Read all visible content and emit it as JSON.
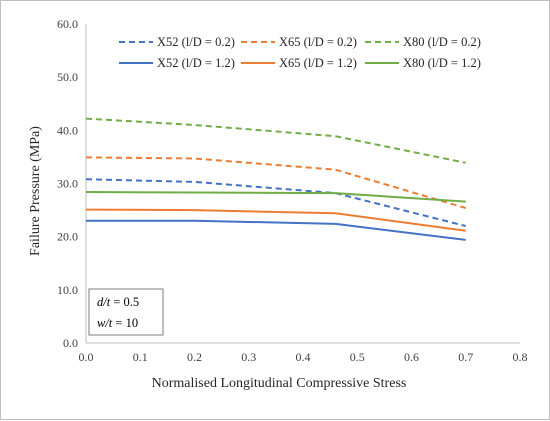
{
  "chart_data": {
    "type": "line",
    "xlabel": "Normalised Longitudinal Compressive Stress",
    "ylabel": "Failure Pressure (MPa)",
    "xlim": [
      0.0,
      0.8
    ],
    "ylim": [
      0.0,
      60.0
    ],
    "x_ticks": [
      "0.0",
      "0.1",
      "0.2",
      "0.3",
      "0.4",
      "0.5",
      "0.6",
      "0.7",
      "0.8"
    ],
    "y_ticks": [
      "0.0",
      "10.0",
      "20.0",
      "30.0",
      "40.0",
      "50.0",
      "60.0"
    ],
    "grid": false,
    "legend_position": "top-right",
    "series": [
      {
        "name": "X52 (l/D = 0.2)",
        "color": "#4472c4",
        "dash": "dashed",
        "x": [
          0.0,
          0.2,
          0.46,
          0.7
        ],
        "y": [
          30.8,
          30.3,
          28.2,
          22.0
        ]
      },
      {
        "name": "X65 (l/D = 0.2)",
        "color": "#ed7d31",
        "dash": "dashed",
        "x": [
          0.0,
          0.2,
          0.46,
          0.7
        ],
        "y": [
          34.9,
          34.7,
          32.6,
          25.4
        ]
      },
      {
        "name": "X80 (l/D = 0.2)",
        "color": "#70ad47",
        "dash": "dashed",
        "x": [
          0.0,
          0.2,
          0.46,
          0.7
        ],
        "y": [
          42.2,
          41.0,
          38.9,
          33.9
        ]
      },
      {
        "name": "X52 (l/D = 1.2)",
        "color": "#4472c4",
        "dash": "solid",
        "x": [
          0.0,
          0.2,
          0.46,
          0.7
        ],
        "y": [
          23.0,
          23.0,
          22.4,
          19.4
        ]
      },
      {
        "name": "X65 (l/D = 1.2)",
        "color": "#ed7d31",
        "dash": "solid",
        "x": [
          0.0,
          0.2,
          0.46,
          0.7
        ],
        "y": [
          25.1,
          25.0,
          24.4,
          21.1
        ]
      },
      {
        "name": "X80 (l/D = 1.2)",
        "color": "#70ad47",
        "dash": "solid",
        "x": [
          0.0,
          0.2,
          0.46,
          0.7
        ],
        "y": [
          28.4,
          28.3,
          28.2,
          26.6
        ]
      }
    ],
    "annotation": {
      "line1_var": "d/t",
      "line1_rest": " = 0.5",
      "line2_var": "w/t",
      "line2_rest": " = 10"
    }
  }
}
